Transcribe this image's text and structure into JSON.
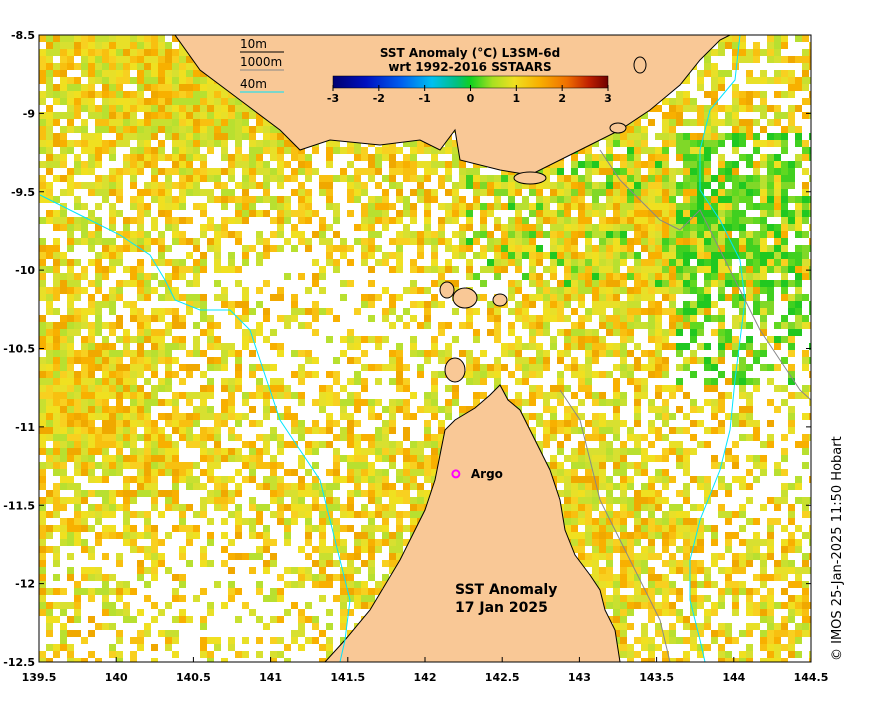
{
  "map": {
    "lon_range": [
      139.5,
      144.5
    ],
    "lat_range": [
      -12.5,
      -8.5
    ],
    "x_ticks": [
      "139.5",
      "140",
      "140.5",
      "141",
      "141.5",
      "142",
      "142.5",
      "143",
      "143.5",
      "144",
      "144.5"
    ],
    "y_ticks": [
      "-8.5",
      "-9",
      "-9.5",
      "-10",
      "-10.5",
      "-11",
      "-11.5",
      "-12",
      "-12.5"
    ],
    "title_line1": "SST Anomaly",
    "title_line2": "17 Jan 2025",
    "credit": "© IMOS 25-Jan-2025 11:50 Hobart",
    "land_color": "#f9c896",
    "no_data_color": "#ffffff"
  },
  "legend": {
    "title_line1": "SST Anomaly (°C) L3SM-6d",
    "title_line2": "wrt 1992-2016 SSTAARS",
    "ticks": [
      "-3",
      "-2",
      "-1",
      "0",
      "1",
      "2",
      "3"
    ],
    "range": [
      -3,
      3
    ]
  },
  "depth_key": {
    "items": [
      {
        "label": "10m",
        "color": "#000000"
      },
      {
        "label": "1000m",
        "color": "#888888"
      },
      {
        "label": "40m",
        "color": "#00e5ff"
      }
    ]
  },
  "argo": {
    "label": "Argo",
    "lon": 142.2,
    "lat": -11.3,
    "color": "#ff00ff"
  }
}
